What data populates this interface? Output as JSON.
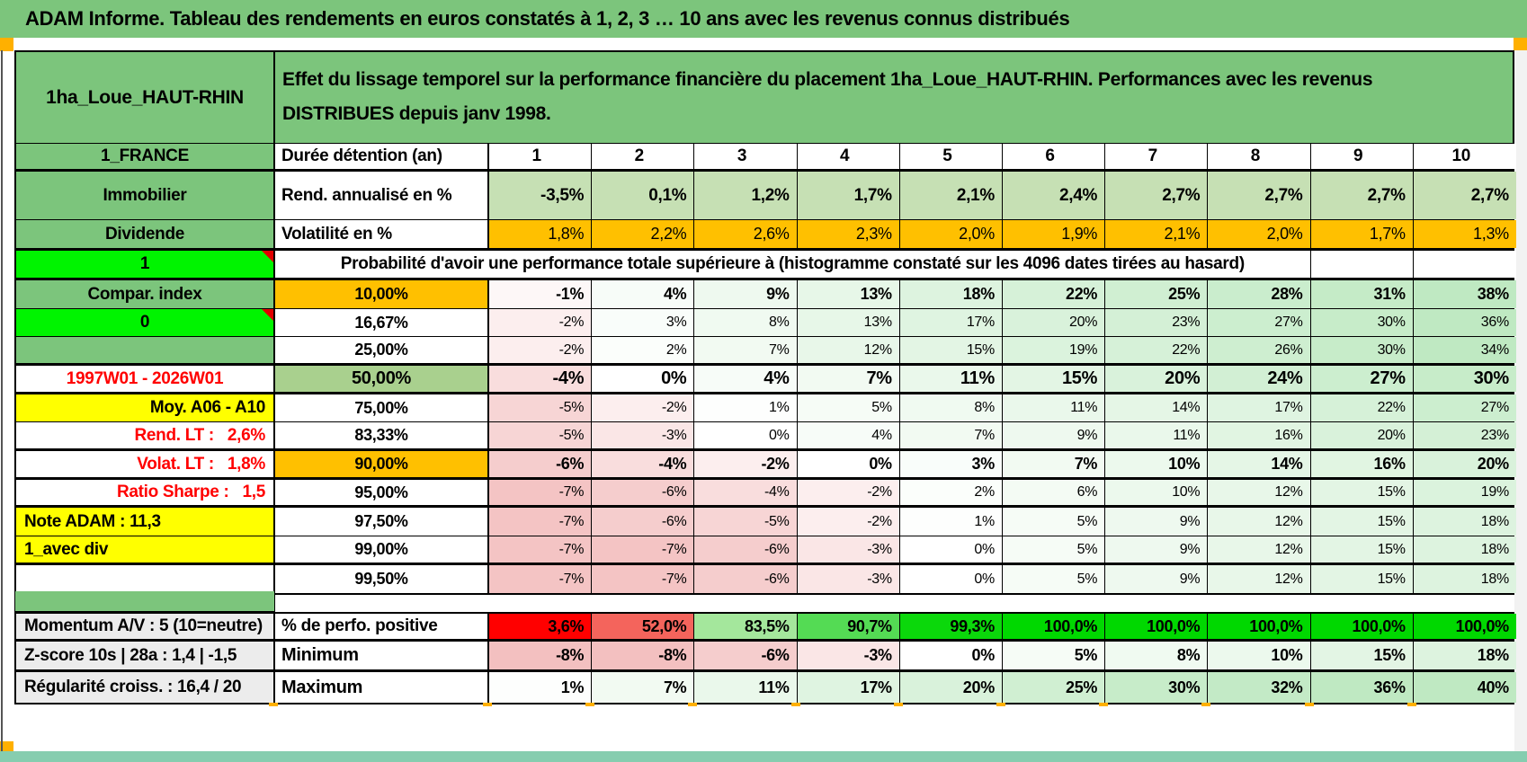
{
  "title": "ADAM Informe. Tableau des rendements en euros constatés à 1, 2, 3 … 10 ans avec les revenus connus distribués",
  "header": {
    "asset": "1ha_Loue_HAUT-RHIN",
    "subtitle": "Effet du lissage temporel sur la performance financière du placement 1ha_Loue_HAUT-RHIN. Performances avec les revenus DISTRIBUES depuis janv 1998."
  },
  "colors": {
    "sheet_green": "#7CC57C",
    "bright_green": "#00F400",
    "orange": "#FFC000",
    "yellow": "#FFFF00",
    "sage": "#A9D08E",
    "light_green_row": "#C6E0B4",
    "grey_label": "#ECECEC",
    "red_text": "#FF0000",
    "negative_base": "#F3C0C0",
    "positive_base": "#BFE9C2",
    "vivid_green": "#00D800",
    "marker_orange": "#FFB000",
    "footer_strip": "#86CDAF"
  },
  "table": {
    "rows": [
      {
        "id": "duration",
        "left": {
          "text": "1_FRANCE",
          "bg": "green",
          "align": "center"
        },
        "label": {
          "text": "Durée détention (an)",
          "bg": "white",
          "align": "left"
        },
        "cells": [
          "1",
          "2",
          "3",
          "4",
          "5",
          "6",
          "7",
          "8",
          "9",
          "10"
        ],
        "cellBg": "white"
      },
      {
        "id": "rend",
        "left": {
          "text": "Immobilier",
          "bg": "green",
          "align": "center"
        },
        "label": {
          "text": "Rend. annualisé en %",
          "bg": "white",
          "align": "left"
        },
        "cells": [
          "-3,5%",
          "0,1%",
          "1,2%",
          "1,7%",
          "2,1%",
          "2,4%",
          "2,7%",
          "2,7%",
          "2,7%",
          "2,7%"
        ],
        "cellBg": "lightgreen"
      },
      {
        "id": "volat",
        "left": {
          "text": "Dividende",
          "bg": "green",
          "align": "center"
        },
        "label": {
          "text": "Volatilité en %",
          "bg": "white",
          "align": "left"
        },
        "cells": [
          "1,8%",
          "2,2%",
          "2,6%",
          "2,3%",
          "2,0%",
          "1,9%",
          "2,1%",
          "2,0%",
          "1,7%",
          "1,3%"
        ],
        "cellBg": "orange"
      },
      {
        "id": "probheader",
        "left": {
          "text": "1",
          "bg": "bright",
          "align": "center",
          "note": true
        },
        "span": {
          "text": "Probabilité d'avoir une performance totale supérieure à (histogramme constaté sur les 4096 dates tirées au hasard)",
          "cols": 9,
          "trailing": 2
        }
      },
      {
        "id": "p10",
        "left": {
          "text": "Compar. index",
          "bg": "green",
          "align": "center"
        },
        "label": {
          "text": "10,00%",
          "bg": "orange",
          "align": "center"
        },
        "cells": [
          "-1%",
          "4%",
          "9%",
          "13%",
          "18%",
          "22%",
          "25%",
          "28%",
          "31%",
          "38%"
        ],
        "cellBg": "auto"
      },
      {
        "id": "p16",
        "left": {
          "text": "0",
          "bg": "bright",
          "align": "center",
          "note": true
        },
        "label": {
          "text": "16,67%",
          "bg": "white",
          "align": "center"
        },
        "cells": [
          "-2%",
          "3%",
          "8%",
          "13%",
          "17%",
          "20%",
          "23%",
          "27%",
          "30%",
          "36%"
        ],
        "cellBg": "auto"
      },
      {
        "id": "p25",
        "left": {
          "text": "",
          "bg": "green",
          "align": "center"
        },
        "label": {
          "text": "25,00%",
          "bg": "white",
          "align": "center"
        },
        "cells": [
          "-2%",
          "2%",
          "7%",
          "12%",
          "15%",
          "19%",
          "22%",
          "26%",
          "30%",
          "34%"
        ],
        "cellBg": "auto"
      },
      {
        "id": "p50",
        "left": {
          "text": "1997W01 - 2026W01",
          "bg": "white",
          "color": "red",
          "align": "center"
        },
        "label": {
          "text": "50,00%",
          "bg": "sage",
          "align": "center"
        },
        "cells": [
          "-4%",
          "0%",
          "4%",
          "7%",
          "11%",
          "15%",
          "20%",
          "24%",
          "27%",
          "30%"
        ],
        "cellBg": "auto"
      },
      {
        "id": "p75",
        "left": {
          "text": "Moy. A06 - A10",
          "bg": "yellow",
          "align": "right"
        },
        "label": {
          "text": "75,00%",
          "bg": "white",
          "align": "center"
        },
        "cells": [
          "-5%",
          "-2%",
          "1%",
          "5%",
          "8%",
          "11%",
          "14%",
          "17%",
          "22%",
          "27%"
        ],
        "cellBg": "auto"
      },
      {
        "id": "p83",
        "left": {
          "text": "Rend. LT :   2,6%",
          "bg": "white",
          "color": "red",
          "align": "right"
        },
        "label": {
          "text": "83,33%",
          "bg": "white",
          "align": "center"
        },
        "cells": [
          "-5%",
          "-3%",
          "0%",
          "4%",
          "7%",
          "9%",
          "11%",
          "16%",
          "20%",
          "23%"
        ],
        "cellBg": "auto"
      },
      {
        "id": "p90",
        "left": {
          "text": "Volat. LT :   1,8%",
          "bg": "white",
          "color": "red",
          "align": "right"
        },
        "label": {
          "text": "90,00%",
          "bg": "orange",
          "align": "center"
        },
        "cells": [
          "-6%",
          "-4%",
          "-2%",
          "0%",
          "3%",
          "7%",
          "10%",
          "14%",
          "16%",
          "20%"
        ],
        "cellBg": "auto"
      },
      {
        "id": "p95",
        "left": {
          "text": "Ratio Sharpe :   1,5",
          "bg": "white",
          "color": "red",
          "align": "right"
        },
        "label": {
          "text": "95,00%",
          "bg": "white",
          "align": "center"
        },
        "cells": [
          "-7%",
          "-6%",
          "-4%",
          "-2%",
          "2%",
          "6%",
          "10%",
          "12%",
          "15%",
          "19%"
        ],
        "cellBg": "auto"
      },
      {
        "id": "p97",
        "left": {
          "text": "Note ADAM : 11,3",
          "bg": "yellow",
          "align": "left"
        },
        "label": {
          "text": "97,50%",
          "bg": "white",
          "align": "center"
        },
        "cells": [
          "-7%",
          "-6%",
          "-5%",
          "-2%",
          "1%",
          "5%",
          "9%",
          "12%",
          "15%",
          "18%"
        ],
        "cellBg": "auto"
      },
      {
        "id": "p99",
        "left": {
          "text": "1_avec div",
          "bg": "yellow",
          "align": "left"
        },
        "label": {
          "text": "99,00%",
          "bg": "white",
          "align": "center"
        },
        "cells": [
          "-7%",
          "-7%",
          "-6%",
          "-3%",
          "0%",
          "5%",
          "9%",
          "12%",
          "15%",
          "18%"
        ],
        "cellBg": "auto"
      },
      {
        "id": "p995",
        "left": {
          "text": "",
          "bg": "white",
          "align": "center"
        },
        "label": {
          "text": "99,50%",
          "bg": "white",
          "align": "center"
        },
        "cells": [
          "-7%",
          "-7%",
          "-6%",
          "-3%",
          "0%",
          "5%",
          "9%",
          "12%",
          "15%",
          "18%"
        ],
        "cellBg": "auto"
      }
    ],
    "bottom_rows": [
      {
        "id": "positive",
        "left": {
          "text": "Momentum A/V : 5 (10=neutre)",
          "bg": "grey",
          "align": "left"
        },
        "label": {
          "text": "% de perfo. positive",
          "bg": "white",
          "align": "left"
        },
        "cells": [
          "3,6%",
          "52,0%",
          "83,5%",
          "90,7%",
          "99,3%",
          "100,0%",
          "100,0%",
          "100,0%",
          "100,0%",
          "100,0%"
        ],
        "cellColors": [
          "#FF0000",
          "#F4645C",
          "#A4E79C",
          "#54DB54",
          "#0BD80B",
          "#00D800",
          "#00D800",
          "#00D800",
          "#00D800",
          "#00D800"
        ]
      },
      {
        "id": "minimum",
        "left": {
          "text": "Z-score 10s | 28a : 1,4 | -1,5",
          "bg": "grey",
          "align": "left"
        },
        "label": {
          "text": "Minimum",
          "bg": "white",
          "align": "left"
        },
        "cells": [
          "-8%",
          "-8%",
          "-6%",
          "-3%",
          "0%",
          "5%",
          "8%",
          "10%",
          "15%",
          "18%"
        ],
        "cellBg": "auto"
      },
      {
        "id": "maximum",
        "left": {
          "text": "Régularité croiss. : 16,4 / 20",
          "bg": "grey",
          "align": "left"
        },
        "label": {
          "text": "Maximum",
          "bg": "white",
          "align": "left"
        },
        "cells": [
          "1%",
          "7%",
          "11%",
          "17%",
          "20%",
          "25%",
          "30%",
          "32%",
          "36%",
          "40%"
        ],
        "cellBg": "auto"
      }
    ]
  }
}
